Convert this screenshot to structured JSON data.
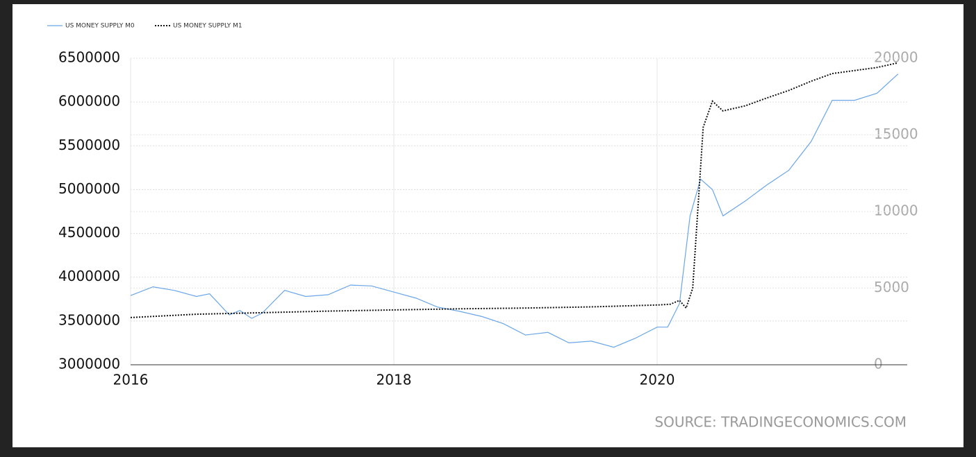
{
  "chart_data": {
    "type": "line",
    "source": "SOURCE: TRADINGECONOMICS.COM",
    "xlim": [
      2016,
      2021.9
    ],
    "xticks": [
      2016,
      2018,
      2020
    ],
    "ylim": [
      3000000,
      6500000
    ],
    "yticks": [
      3000000,
      3500000,
      4000000,
      4500000,
      5000000,
      5500000,
      6000000,
      6500000
    ],
    "y2lim": [
      0,
      20000
    ],
    "y2ticks": [
      0,
      5000,
      10000,
      15000,
      20000
    ],
    "grid": true,
    "legend": "top-left",
    "series": [
      {
        "name": "US MONEY SUPPLY M0",
        "color": "#6aa6e8",
        "style": "solid",
        "x": [
          2016,
          2016.17,
          2016.33,
          2016.5,
          2016.6,
          2016.75,
          2016.83,
          2016.92,
          2017,
          2017.17,
          2017.33,
          2017.5,
          2017.67,
          2017.83,
          2018,
          2018.17,
          2018.33,
          2018.5,
          2018.67,
          2018.83,
          2019,
          2019.17,
          2019.33,
          2019.5,
          2019.67,
          2019.83,
          2020,
          2020.08,
          2020.17,
          2020.25,
          2020.33,
          2020.42,
          2020.5,
          2020.67,
          2020.83,
          2021,
          2021.17,
          2021.33,
          2021.5,
          2021.67,
          2021.83
        ],
        "values": [
          3790000,
          3890000,
          3850000,
          3780000,
          3810000,
          3570000,
          3620000,
          3530000,
          3590000,
          3850000,
          3780000,
          3800000,
          3910000,
          3900000,
          3830000,
          3760000,
          3660000,
          3610000,
          3550000,
          3470000,
          3340000,
          3370000,
          3250000,
          3270000,
          3200000,
          3300000,
          3430000,
          3430000,
          3700000,
          4700000,
          5120000,
          5000000,
          4700000,
          4870000,
          5050000,
          5220000,
          5550000,
          6020000,
          6020000,
          6100000,
          6320000
        ]
      },
      {
        "name": "US MONEY SUPPLY M1",
        "color": "#111111",
        "style": "dotted",
        "axis": "y2",
        "x": [
          2016,
          2016.5,
          2017,
          2017.5,
          2018,
          2018.5,
          2019,
          2019.5,
          2020,
          2020.1,
          2020.17,
          2020.22,
          2020.27,
          2020.35,
          2020.42,
          2020.5,
          2020.67,
          2020.83,
          2021,
          2021.17,
          2021.33,
          2021.5,
          2021.67,
          2021.83
        ],
        "values": [
          3080,
          3300,
          3400,
          3500,
          3580,
          3650,
          3700,
          3780,
          3900,
          3950,
          4200,
          3700,
          5000,
          15500,
          17200,
          16560,
          16900,
          17400,
          17900,
          18500,
          19000,
          19200,
          19400,
          19700
        ]
      }
    ]
  }
}
